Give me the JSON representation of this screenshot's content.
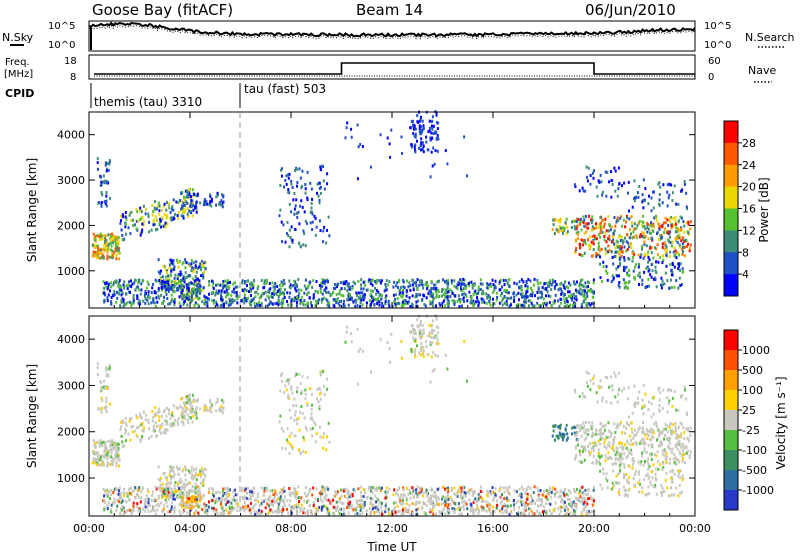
{
  "header": {
    "station": "Goose Bay (fitACF)",
    "beam": "Beam 14",
    "date": "06/Jun/2010"
  },
  "noise_panel": {
    "left_label": "N.Sky",
    "right_label": "N.Search",
    "left_ticks": [
      "10^5",
      "10^0"
    ],
    "right_ticks": [
      "10^5",
      "10^0"
    ]
  },
  "freq_panel": {
    "left_label": "Freq.",
    "left_unit": "[MHz]",
    "left_ticks": [
      "18",
      "8"
    ],
    "right_label": "Nave",
    "right_ticks": [
      "60",
      "0"
    ]
  },
  "cpid_panel": {
    "label": "CPID",
    "modes": [
      {
        "name": "themis (tau) 3310",
        "start_hour": 0
      },
      {
        "name": "tau (fast) 503",
        "start_hour": 6
      }
    ]
  },
  "chart_data": [
    {
      "type": "heatmap",
      "name": "Power",
      "ylabel": "Slant Range [km]",
      "xlabel": "",
      "x_ticks": [
        "00:00",
        "04:00",
        "08:00",
        "12:00",
        "16:00",
        "20:00",
        "00:00"
      ],
      "xlim_hours": [
        0,
        24
      ],
      "y_ticks": [
        1000,
        2000,
        3000,
        4000
      ],
      "ylim": [
        180,
        4500
      ],
      "colorbar": {
        "label": "Power [dB]",
        "ticks": [
          4,
          8,
          12,
          16,
          20,
          24,
          28
        ],
        "range": [
          0,
          32
        ],
        "colors": [
          "#0000ff",
          "#2050c8",
          "#3c8c78",
          "#55c030",
          "#e8d800",
          "#ff9c00",
          "#ff5a00",
          "#ff0000"
        ]
      }
    },
    {
      "type": "heatmap",
      "name": "Velocity",
      "ylabel": "Slant Range [km]",
      "xlabel": "Time UT",
      "x_ticks": [
        "00:00",
        "04:00",
        "08:00",
        "12:00",
        "16:00",
        "20:00",
        "00:00"
      ],
      "xlim_hours": [
        0,
        24
      ],
      "y_ticks": [
        1000,
        2000,
        3000,
        4000
      ],
      "ylim": [
        180,
        4500
      ],
      "colorbar": {
        "label": "Velocity [m s⁻¹]",
        "ticks": [
          1000,
          500,
          100,
          25,
          -25,
          -100,
          -500,
          -1000
        ],
        "colors": [
          "#2838c8",
          "#2c6ea0",
          "#3c9060",
          "#58c040",
          "#c8c8c0",
          "#ffd000",
          "#ffa000",
          "#ff5000",
          "#ff0000"
        ]
      }
    }
  ]
}
